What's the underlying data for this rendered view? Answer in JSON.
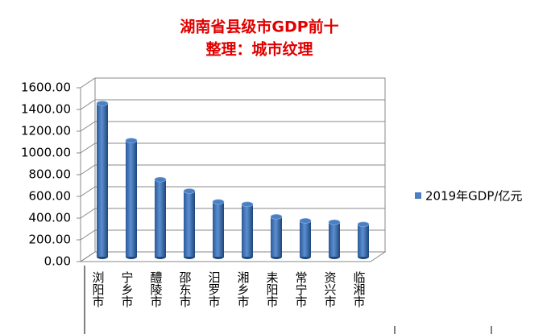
{
  "chart_data": {
    "type": "bar",
    "title": "湖南省县级市GDP前十",
    "subtitle": "整理：城市纹理",
    "categories": [
      "浏阳市",
      "宁乡市",
      "醴陵市",
      "邵东市",
      "汨罗市",
      "湘乡市",
      "耒阳市",
      "常宁市",
      "资兴市",
      "临湘市"
    ],
    "series": [
      {
        "name": "2019年GDP/亿元",
        "color": "#4a7fc4",
        "values": [
          1411,
          1069,
          710,
          604,
          505,
          483,
          368,
          331,
          318,
          298
        ]
      }
    ],
    "ylim": [
      0,
      1600
    ],
    "yticks": [
      {
        "value": 0,
        "label": "0.00"
      },
      {
        "value": 200,
        "label": "200.00"
      },
      {
        "value": 400,
        "label": "400.00"
      },
      {
        "value": 600,
        "label": "600.00"
      },
      {
        "value": 800,
        "label": "800.00"
      },
      {
        "value": 1000,
        "label": "1000.00"
      },
      {
        "value": 1200,
        "label": "1200.00"
      },
      {
        "value": 1400,
        "label": "1400.00"
      },
      {
        "value": 1600,
        "label": "1600.00"
      }
    ],
    "grid": true,
    "legend": "right"
  }
}
